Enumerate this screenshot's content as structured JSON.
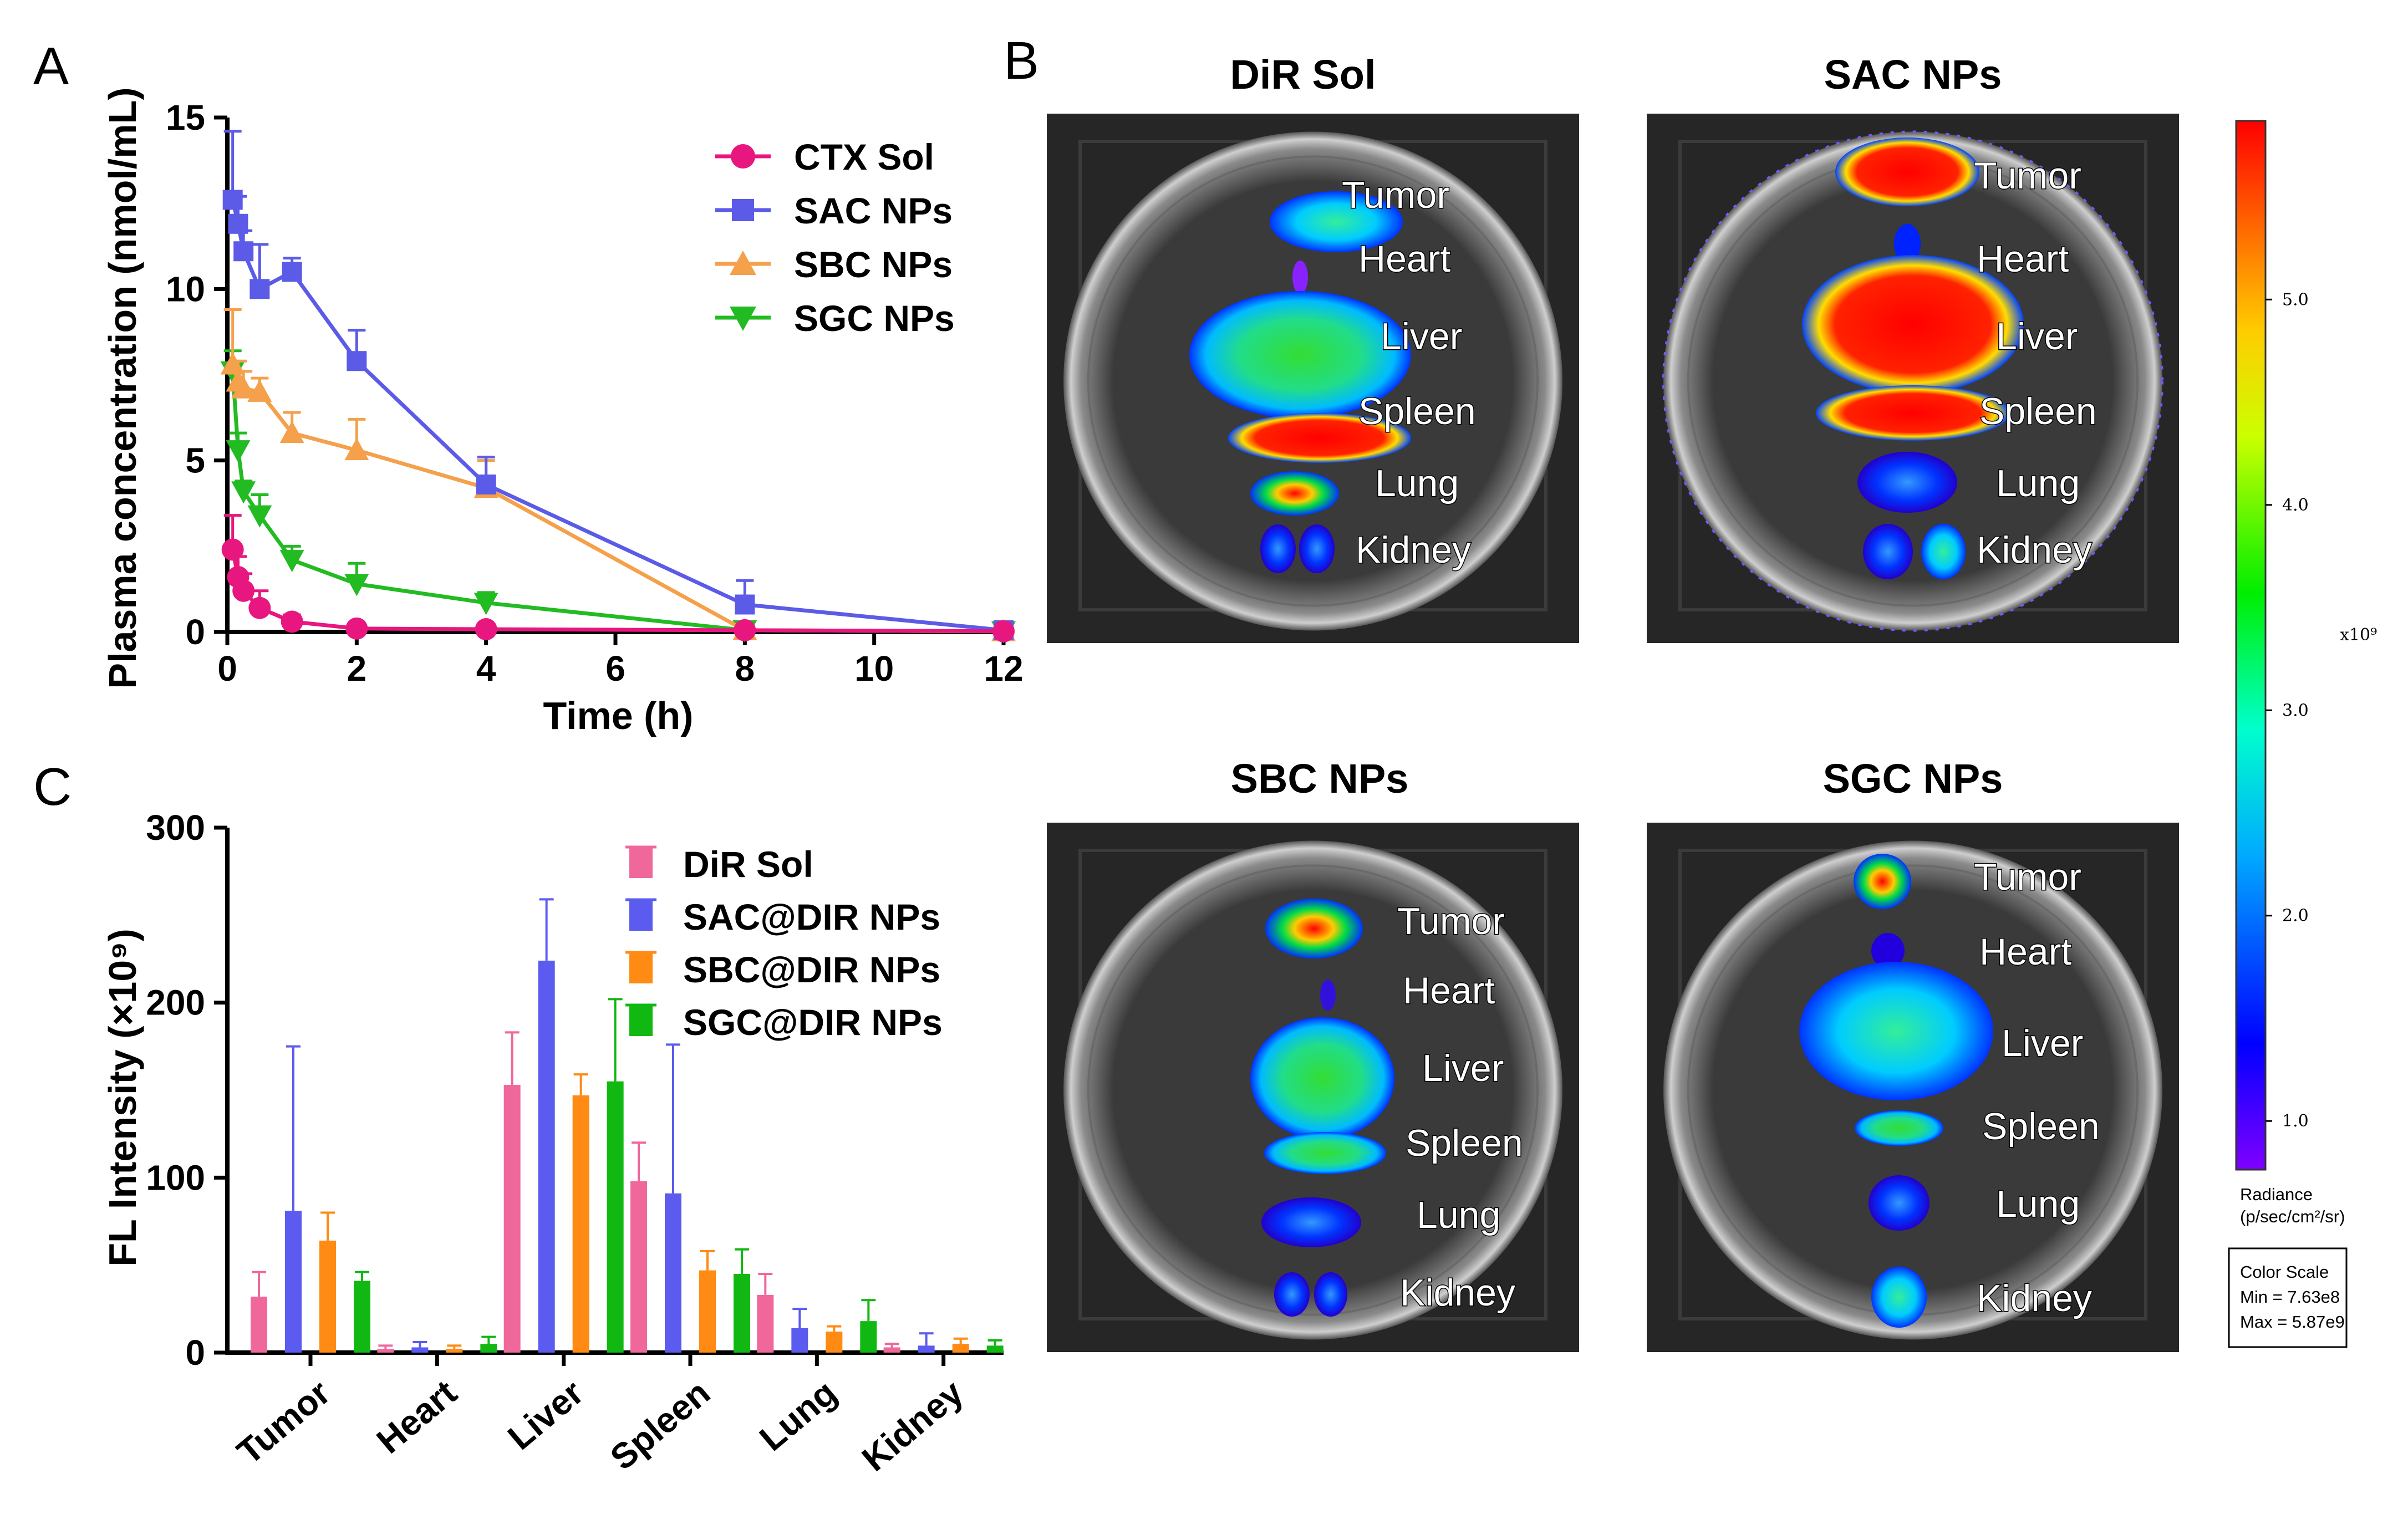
{
  "panels": {
    "a": "A",
    "b": "B",
    "c": "C"
  },
  "colors": {
    "ctx": "#e8177f",
    "sac": "#5b5be8",
    "sbc": "#f5a04a",
    "sgc": "#22bb22",
    "bar_dir": "#f0679c",
    "bar_sac": "#5b5bef",
    "bar_sbc": "#ff8a14",
    "bar_sgc": "#12b812"
  },
  "chart_data": [
    {
      "type": "line",
      "title": "",
      "xlabel": "Time (h)",
      "ylabel": "Plasma concentration (nmol/mL)",
      "xlim": [
        0,
        12
      ],
      "ylim": [
        0,
        15
      ],
      "xticks": [
        "0",
        "2",
        "4",
        "6",
        "8",
        "10",
        "12"
      ],
      "yticks": [
        "0",
        "5",
        "10",
        "15"
      ],
      "legend_position": "top-right",
      "series": [
        {
          "name": "CTX Sol",
          "marker": "circle",
          "x": [
            0.083,
            0.167,
            0.25,
            0.5,
            1,
            2,
            4,
            8,
            12
          ],
          "y": [
            2.4,
            1.6,
            1.2,
            0.7,
            0.3,
            0.1,
            0.08,
            0.05,
            0.02
          ],
          "err": [
            1.0,
            0.6,
            0.5,
            0.5,
            0.2,
            0.1,
            0.05,
            0.05,
            0.02
          ]
        },
        {
          "name": "SAC NPs",
          "marker": "square",
          "x": [
            0.083,
            0.167,
            0.25,
            0.5,
            1,
            2,
            4,
            8,
            12
          ],
          "y": [
            12.6,
            11.9,
            11.1,
            10.0,
            10.5,
            7.9,
            4.3,
            0.8,
            0.05
          ],
          "err": [
            2.0,
            0.8,
            0.6,
            1.3,
            0.4,
            0.9,
            0.8,
            0.7,
            0.05
          ]
        },
        {
          "name": "SBC NPs",
          "marker": "triangle-up",
          "x": [
            0.083,
            0.167,
            0.25,
            0.5,
            1,
            2,
            4,
            8,
            12
          ],
          "y": [
            7.8,
            7.3,
            7.1,
            7.0,
            5.8,
            5.3,
            4.2,
            0.05,
            0.02
          ],
          "err": [
            1.6,
            0.6,
            0.5,
            0.4,
            0.6,
            0.9,
            0.8,
            0.05,
            0.02
          ]
        },
        {
          "name": "SGC NPs",
          "marker": "triangle-down",
          "x": [
            0.083,
            0.167,
            0.25,
            0.5,
            1,
            2,
            4,
            8,
            12
          ],
          "y": [
            7.6,
            5.3,
            4.1,
            3.4,
            2.1,
            1.4,
            0.85,
            0.05,
            0.02
          ],
          "err": [
            0.6,
            0.5,
            0.3,
            0.6,
            0.4,
            0.6,
            0.3,
            0.05,
            0.02
          ]
        }
      ]
    },
    {
      "type": "bar",
      "title": "",
      "xlabel": "",
      "ylabel": "FL Intensity (×10⁹)",
      "ylim": [
        0,
        300
      ],
      "yticks": [
        "0",
        "100",
        "200",
        "300"
      ],
      "categories": [
        "Tumor",
        "Heart",
        "Liver",
        "Spleen",
        "Lung",
        "Kidney"
      ],
      "legend_position": "top-right",
      "series": [
        {
          "name": "DiR Sol",
          "values": [
            32,
            2,
            153,
            98,
            33,
            3
          ],
          "err": [
            14,
            2,
            30,
            22,
            12,
            2
          ]
        },
        {
          "name": "SAC@DIR NPs",
          "values": [
            81,
            3,
            224,
            91,
            14,
            4
          ],
          "err": [
            94,
            3,
            35,
            85,
            11,
            7
          ]
        },
        {
          "name": "SBC@DIR NPs",
          "values": [
            64,
            2,
            147,
            47,
            12,
            5
          ],
          "err": [
            16,
            2,
            12,
            11,
            3,
            3
          ]
        },
        {
          "name": "SGC@DIR NPs",
          "values": [
            41,
            5,
            155,
            45,
            18,
            4
          ],
          "err": [
            5,
            4,
            47,
            14,
            12,
            3
          ]
        }
      ]
    }
  ],
  "imaging": {
    "titles": [
      "DiR Sol",
      "SAC NPs",
      "SBC NPs",
      "SGC NPs"
    ],
    "organs": [
      "Tumor",
      "Heart",
      "Liver",
      "Spleen",
      "Lung",
      "Kidney"
    ],
    "colorbar": {
      "ticks": [
        "5.0",
        "4.0",
        "3.0",
        "2.0",
        "1.0"
      ],
      "tick_values": [
        5.0,
        4.0,
        3.0,
        2.0,
        1.0
      ],
      "multiplier": "x10⁹",
      "radiance_label": "Radiance",
      "radiance_units": "(p/sec/cm²/sr)",
      "scale_title": "Color Scale",
      "min_label": "Min = 7.63e8",
      "max_label": "Max = 5.87e9"
    }
  }
}
